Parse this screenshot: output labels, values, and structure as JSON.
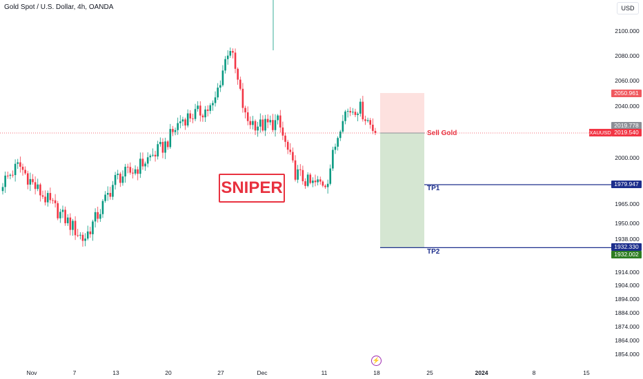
{
  "header": {
    "title": "Gold Spot / U.S. Dollar, 4h, OANDA",
    "currency": "USD"
  },
  "price_axis": {
    "labels": [
      "2100.000",
      "2080.000",
      "2060.000",
      "2040.000",
      "2000.000",
      "1965.000",
      "1950.000",
      "1938.000",
      "1914.000",
      "1904.000",
      "1894.000",
      "1884.000",
      "1874.000",
      "1864.000",
      "1854.000"
    ]
  },
  "time_axis": {
    "labels": [
      "Nov",
      "7",
      "13",
      "20",
      "27",
      "Dec",
      "11",
      "18",
      "25",
      "2024",
      "8",
      "15"
    ]
  },
  "tags": {
    "stop": "2050.961",
    "last_gray": "2019.778",
    "current": "2019.540",
    "symbol": "XAUUSD",
    "tp1": "1979.947",
    "tp2_blue": "1932.330",
    "tp2_green": "1932.002"
  },
  "annotations": {
    "sniper": "SNIPER",
    "sell": "Sell Gold",
    "tp1": "TP1",
    "tp2": "TP2"
  },
  "colors": {
    "bull": "#089981",
    "bear": "#f23645",
    "stop_zone": "#fde1df",
    "target_zone": "#d5e6d2",
    "tp_line": "#1c2e8c",
    "accent": "#e8313f"
  },
  "icons": {
    "events": "lightning-icon"
  },
  "chart_data": {
    "type": "candlestick",
    "symbol": "XAUUSD",
    "timeframe": "4h",
    "x_ticks": [
      "Nov",
      "7",
      "13",
      "20",
      "27",
      "Dec",
      "11",
      "18",
      "25",
      "2024",
      "8",
      "15"
    ],
    "y_ticks": [
      1854,
      1864,
      1874,
      1884,
      1894,
      1904,
      1914,
      1938,
      1950,
      1965,
      2000,
      2040,
      2060,
      2080,
      2100
    ],
    "anchors": [
      {
        "label": "Nov",
        "close": 1982
      },
      {
        "label": "",
        "close": 1995
      },
      {
        "label": "",
        "close": 1978
      },
      {
        "label": "7",
        "close": 1965
      },
      {
        "label": "",
        "close": 1952
      },
      {
        "label": "13",
        "close": 1938
      },
      {
        "label": "",
        "close": 1960
      },
      {
        "label": "",
        "close": 1985
      },
      {
        "label": "20",
        "close": 1990
      },
      {
        "label": "",
        "close": 2000
      },
      {
        "label": "",
        "close": 2010
      },
      {
        "label": "27",
        "close": 2030
      },
      {
        "label": "",
        "close": 2035
      },
      {
        "label": "",
        "close": 2040
      },
      {
        "label": "Dec",
        "close": 2090
      },
      {
        "label": "",
        "close": 2030
      },
      {
        "label": "",
        "close": 2025
      },
      {
        "label": "",
        "close": 2028
      },
      {
        "label": "11",
        "close": 1990
      },
      {
        "label": "",
        "close": 1980
      },
      {
        "label": "",
        "close": 1982
      },
      {
        "label": "",
        "close": 2035
      },
      {
        "label": "",
        "close": 2040
      },
      {
        "label": "18",
        "close": 2020
      }
    ],
    "position": {
      "side": "short",
      "label": "Sell Gold",
      "entry": 2019.54,
      "stop": 2050.961,
      "targets": [
        {
          "name": "TP1",
          "price": 1979.947
        },
        {
          "name": "TP2",
          "price": 1932.33
        }
      ]
    }
  }
}
